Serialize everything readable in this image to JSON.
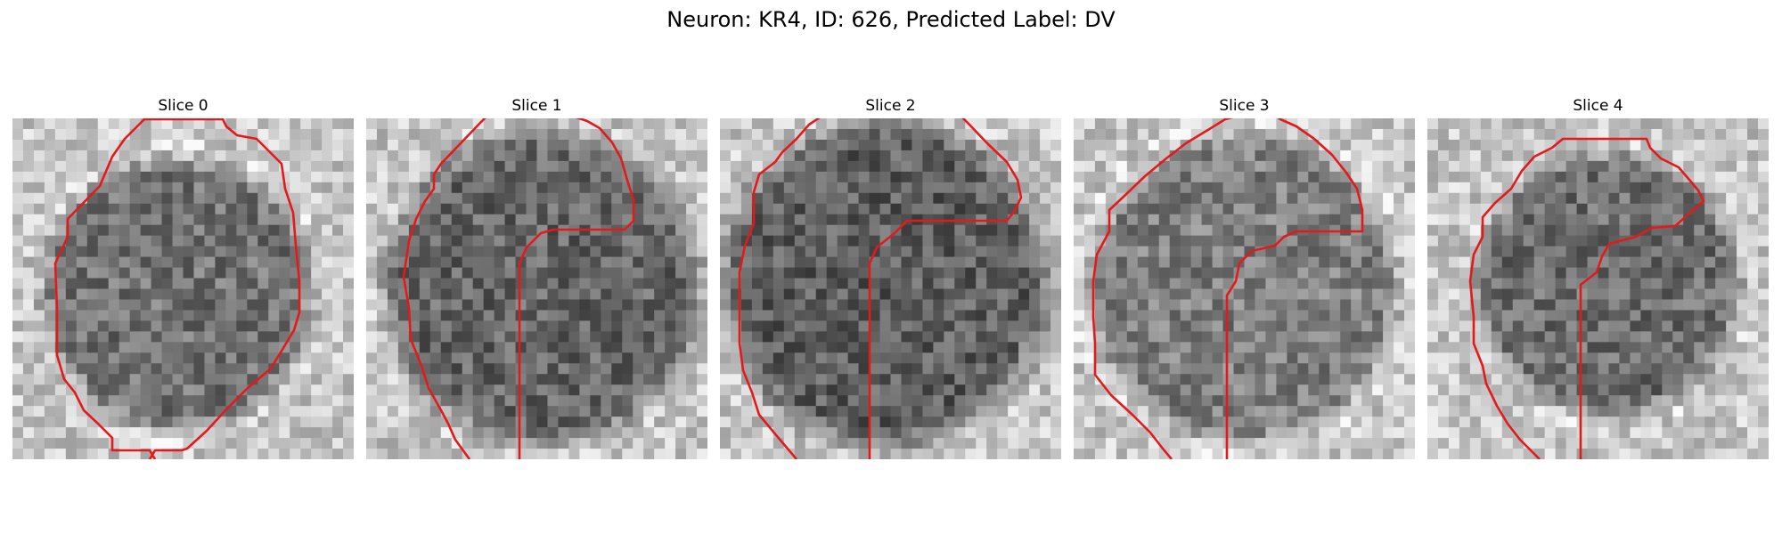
{
  "figure": {
    "title": "Neuron: KR4, ID: 626, Predicted Label: DV"
  },
  "panels": [
    {
      "title": "Slice 0"
    },
    {
      "title": "Slice 1"
    },
    {
      "title": "Slice 2"
    },
    {
      "title": "Slice 3"
    },
    {
      "title": "Slice 4"
    }
  ],
  "contour_color": "#e31a1c",
  "image_colormap": "grayscale"
}
